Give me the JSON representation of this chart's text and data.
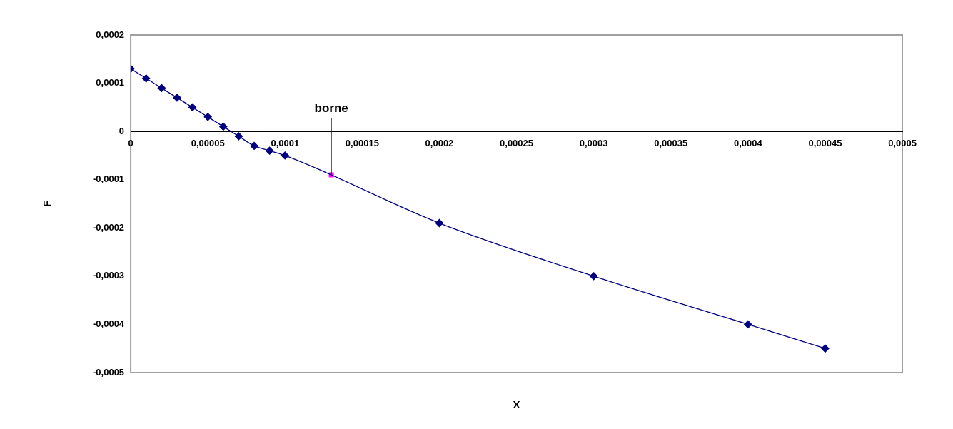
{
  "chart_data": {
    "type": "line",
    "xlabel": "X",
    "ylabel": "F",
    "xlim": [
      0,
      0.0005
    ],
    "ylim": [
      -0.0005,
      0.0002
    ],
    "xticks": [
      0,
      {
        "value": 5e-05,
        "label": "0,00005"
      },
      {
        "value": 0.0001,
        "label": "0,0001"
      },
      {
        "value": 0.00015,
        "label": "0,00015"
      },
      {
        "value": 0.0002,
        "label": "0,0002"
      },
      {
        "value": 0.00025,
        "label": "0,00025"
      },
      {
        "value": 0.0003,
        "label": "0,0003"
      },
      {
        "value": 0.00035,
        "label": "0,00035"
      },
      {
        "value": 0.0004,
        "label": "0,0004"
      },
      {
        "value": 0.00045,
        "label": "0,00045"
      },
      {
        "value": 0.0005,
        "label": "0,0005"
      }
    ],
    "yticks": [
      {
        "value": -0.0005,
        "label": "-0,0005"
      },
      {
        "value": -0.0004,
        "label": "-0,0004"
      },
      {
        "value": -0.0003,
        "label": "-0,0003"
      },
      {
        "value": -0.0002,
        "label": "-0,0002"
      },
      {
        "value": -0.0001,
        "label": "-0,0001"
      },
      0,
      {
        "value": 0.0001,
        "label": "0,0001"
      },
      {
        "value": 0.0002,
        "label": "0,0002"
      }
    ],
    "grid": false,
    "legend": false,
    "series": [
      {
        "color": "#000080",
        "marker": "diamond",
        "x": [
          0,
          1e-05,
          2e-05,
          3e-05,
          4e-05,
          5e-05,
          6e-05,
          7e-05,
          8e-05,
          9e-05,
          0.0001,
          0.0002,
          0.0003,
          0.0004,
          0.00045
        ],
        "values": [
          0.00013,
          0.00011,
          9e-05,
          7e-05,
          5e-05,
          3e-05,
          1e-05,
          -1e-05,
          -3e-05,
          -4e-05,
          -5e-05,
          -0.00019,
          -0.0003,
          -0.0004,
          -0.00045
        ]
      },
      {
        "color": "#ff00ff",
        "marker": "square",
        "x": [
          0.00013
        ],
        "values": [
          -9e-05
        ]
      }
    ],
    "annotations": [
      {
        "text": "borne",
        "x": 0.00013,
        "y": -9e-05
      }
    ]
  }
}
